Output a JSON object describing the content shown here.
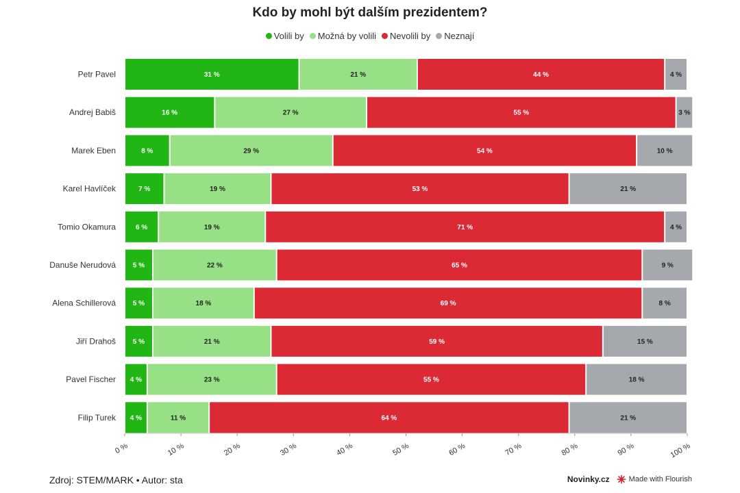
{
  "chart_data": {
    "type": "bar",
    "orientation": "horizontal",
    "stacked": true,
    "title": "Kdo by mohl být dalším prezidentem?",
    "categories": [
      "Petr Pavel",
      "Andrej Babiš",
      "Marek Eben",
      "Karel Havlíček",
      "Tomio Okamura",
      "Danuše Nerudová",
      "Alena Schillerová",
      "Jiří Drahoš",
      "Pavel Fischer",
      "Filip Turek"
    ],
    "series": [
      {
        "name": "Volili by",
        "color": "#22b614",
        "label_color": "#ffffff",
        "values": [
          31,
          16,
          8,
          7,
          6,
          5,
          5,
          5,
          4,
          4
        ]
      },
      {
        "name": "Možná by volili",
        "color": "#97e085",
        "label_color": "#222222",
        "values": [
          21,
          27,
          29,
          19,
          19,
          22,
          18,
          21,
          23,
          11
        ]
      },
      {
        "name": "Nevolili by",
        "color": "#dc2a35",
        "label_color": "#ffffff",
        "values": [
          44,
          55,
          54,
          53,
          71,
          65,
          69,
          59,
          55,
          64
        ]
      },
      {
        "name": "Neznají",
        "color": "#a5a9ae",
        "label_color": "#222222",
        "values": [
          4,
          3,
          10,
          21,
          4,
          9,
          8,
          15,
          18,
          21
        ]
      }
    ],
    "xlim": [
      0,
      100
    ],
    "x_ticks": [
      0,
      10,
      20,
      30,
      40,
      50,
      60,
      70,
      80,
      90,
      100
    ],
    "x_tick_labels": [
      "0 %",
      "10 %",
      "20 %",
      "30 %",
      "40 %",
      "50 %",
      "60 %",
      "70 %",
      "80 %",
      "90 %",
      "100 %"
    ],
    "value_suffix": " %",
    "legend_position": "top-center",
    "grid": false
  },
  "footer": {
    "source": "Zdroj: STEM/MARK • Autor: sta",
    "brand": "Novinky.cz",
    "made_with": "Made with Flourish"
  }
}
